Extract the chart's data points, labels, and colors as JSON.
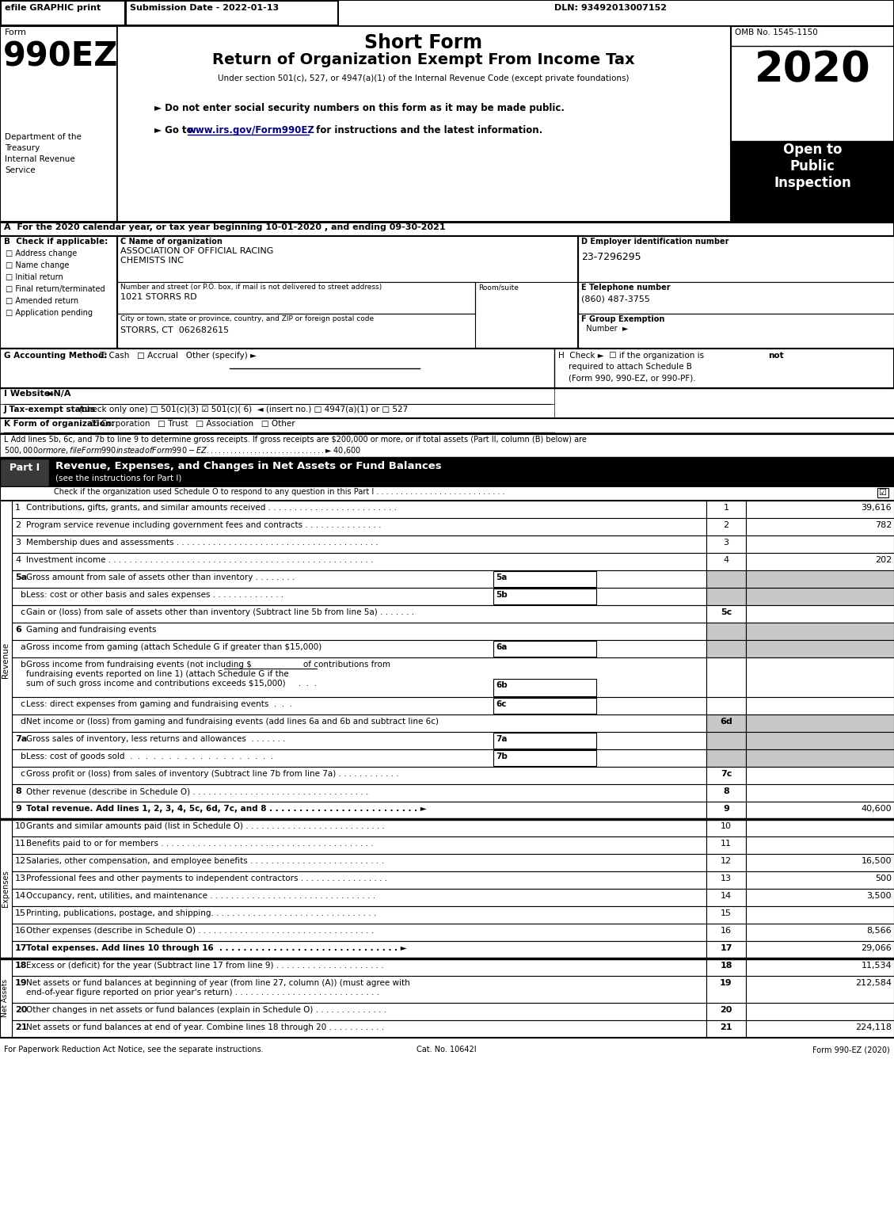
{
  "title_short_form": "Short Form",
  "title_main": "Return of Organization Exempt From Income Tax",
  "subtitle": "Under section 501(c), 527, or 4947(a)(1) of the Internal Revenue Code (except private foundations)",
  "bullet1": "► Do not enter social security numbers on this form as it may be made public.",
  "bullet2_pre": "► Go to ",
  "bullet2_url": "www.irs.gov/Form990EZ",
  "bullet2_post": " for instructions and the latest information.",
  "form_number": "990EZ",
  "form_label": "Form",
  "year": "2020",
  "omb": "OMB No. 1545-1150",
  "efile_text": "efile GRAPHIC print",
  "submission_date": "Submission Date - 2022-01-13",
  "dln": "DLN: 93492013007152",
  "section_A": "A  For the 2020 calendar year, or tax year beginning 10-01-2020 , and ending 09-30-2021",
  "checkboxes_B": [
    "Address change",
    "Name change",
    "Initial return",
    "Final return/terminated",
    "Amended return",
    "Application pending"
  ],
  "org_name1": "ASSOCIATION OF OFFICIAL RACING",
  "org_name2": "CHEMISTS INC",
  "street": "1021 STORRS RD",
  "city": "STORRS, CT  062682615",
  "ein": "23-7296295",
  "phone": "(860) 487-3755",
  "footer_left": "For Paperwork Reduction Act Notice, see the separate instructions.",
  "footer_cat": "Cat. No. 10642I",
  "footer_right": "Form 990-EZ (2020)",
  "row_shaded": "#c8c8c8",
  "part_header_bg": "#000000"
}
